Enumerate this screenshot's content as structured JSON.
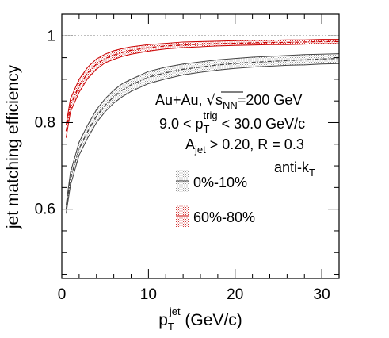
{
  "chart_data": {
    "type": "line",
    "xlabel": {
      "main": "p",
      "sub": "T",
      "sup": "jet",
      "unit": " (GeV/c)"
    },
    "ylabel": "jet matching efficiency",
    "xlim": [
      0,
      32
    ],
    "ylim": [
      0.44,
      1.05
    ],
    "x_ticks": [
      0,
      10,
      20,
      30
    ],
    "x_tick_labels": [
      "0",
      "10",
      "20",
      "30"
    ],
    "y_ticks": [
      0.6,
      0.8,
      1.0
    ],
    "y_tick_labels": [
      "0.6",
      "0.8",
      "1"
    ],
    "reference_line_y": 1.0,
    "grid": false,
    "legend_placement": "right",
    "annotations": {
      "line1": {
        "a": "Au+Au, ",
        "b": "s",
        "c": "NN",
        "d": "=200 GeV"
      },
      "line2": {
        "a": "9.0 < p",
        "sub": "T",
        "sup": "trig",
        "b": " < 30.0 GeV/c"
      },
      "line3": {
        "a": "A",
        "sub": "jet",
        "b": " > 0.20, R = 0.3"
      },
      "line4": {
        "a": "anti-k",
        "sub": "T"
      }
    },
    "series": [
      {
        "name": "0%-10%",
        "color": "#444444",
        "x": [
          0.5,
          1,
          2,
          3,
          4,
          5,
          6,
          7,
          8,
          10,
          12,
          14,
          16,
          18,
          20,
          22,
          24,
          26,
          28,
          30,
          32
        ],
        "y": [
          0.6,
          0.67,
          0.74,
          0.78,
          0.815,
          0.84,
          0.86,
          0.875,
          0.887,
          0.905,
          0.915,
          0.923,
          0.928,
          0.933,
          0.936,
          0.939,
          0.941,
          0.943,
          0.945,
          0.947,
          0.948
        ],
        "upper": [
          0.61,
          0.685,
          0.755,
          0.795,
          0.83,
          0.855,
          0.875,
          0.89,
          0.9,
          0.918,
          0.928,
          0.935,
          0.94,
          0.945,
          0.948,
          0.951,
          0.953,
          0.955,
          0.957,
          0.958,
          0.959
        ],
        "lower": [
          0.59,
          0.655,
          0.725,
          0.765,
          0.8,
          0.825,
          0.845,
          0.86,
          0.872,
          0.89,
          0.901,
          0.91,
          0.916,
          0.921,
          0.925,
          0.928,
          0.93,
          0.932,
          0.933,
          0.935,
          0.936
        ]
      },
      {
        "name": "60%-80%",
        "color": "#cc0000",
        "x": [
          0.5,
          1,
          2,
          3,
          4,
          5,
          6,
          7,
          8,
          10,
          12,
          14,
          16,
          18,
          20,
          22,
          24,
          26,
          28,
          30,
          32
        ],
        "y": [
          0.78,
          0.84,
          0.885,
          0.915,
          0.935,
          0.948,
          0.956,
          0.962,
          0.967,
          0.973,
          0.977,
          0.979,
          0.981,
          0.982,
          0.983,
          0.984,
          0.985,
          0.985,
          0.986,
          0.987,
          0.987
        ],
        "upper": [
          0.795,
          0.855,
          0.9,
          0.928,
          0.947,
          0.958,
          0.966,
          0.971,
          0.975,
          0.98,
          0.983,
          0.986,
          0.987,
          0.988,
          0.989,
          0.99,
          0.99,
          0.991,
          0.991,
          0.992,
          0.992
        ],
        "lower": [
          0.765,
          0.825,
          0.87,
          0.902,
          0.923,
          0.938,
          0.946,
          0.953,
          0.958,
          0.965,
          0.97,
          0.973,
          0.975,
          0.977,
          0.978,
          0.979,
          0.98,
          0.98,
          0.981,
          0.982,
          0.982
        ]
      }
    ]
  }
}
